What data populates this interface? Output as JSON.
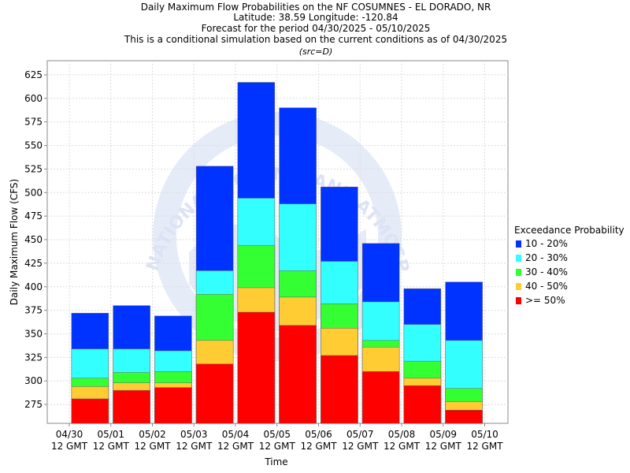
{
  "titles": {
    "line1": "Daily Maximum Flow Probabilities on the NF COSUMNES - EL DORADO, NR",
    "line2": "Latitude: 38.59 Longitude: -120.84",
    "line3": "Forecast for the period 04/30/2025 - 05/10/2025",
    "line4": "This is a conditional simulation based on the current conditions as of 04/30/2025",
    "src": "(src=D)"
  },
  "watermark": {
    "text": "NATIONAL OCEANIC AND ATMOSPHERIC ADMINISTRATION",
    "color": "#dde3f5",
    "icon": "noaa-logo-icon"
  },
  "chart_data": {
    "type": "bar",
    "stacked": true,
    "title": "Daily Maximum Flow Probabilities on the NF COSUMNES - EL DORADO, NR",
    "xlabel": "Time",
    "ylabel": "Daily Maximum Flow (CFS)",
    "ylim": [
      255,
      640
    ],
    "yticks": [
      275,
      300,
      325,
      350,
      375,
      400,
      425,
      450,
      475,
      500,
      525,
      550,
      575,
      600,
      625
    ],
    "xticks": [
      {
        "date": "05/01",
        "time": "12 GMT"
      },
      {
        "date": "05/02",
        "time": "12 GMT"
      },
      {
        "date": "05/03",
        "time": "12 GMT"
      },
      {
        "date": "05/04",
        "time": "12 GMT"
      },
      {
        "date": "05/05",
        "time": "12 GMT"
      },
      {
        "date": "05/06",
        "time": "12 GMT"
      },
      {
        "date": "05/07",
        "time": "12 GMT"
      },
      {
        "date": "05/08",
        "time": "12 GMT"
      },
      {
        "date": "05/09",
        "time": "12 GMT"
      },
      {
        "date": "05/10",
        "time": "12 GMT"
      }
    ],
    "first_tick": {
      "date": "04/30",
      "time": "12 GMT"
    },
    "grid": true,
    "legend_position": "right",
    "legend_title": "Exceedance Probability",
    "series": [
      {
        "name": "10 - 20%",
        "color": "#0033ff"
      },
      {
        "name": "20 - 30%",
        "color": "#33ffff"
      },
      {
        "name": "30 - 40%",
        "color": "#33ff33"
      },
      {
        "name": "40 - 50%",
        "color": "#ffcc33"
      },
      {
        "name": ">= 50%",
        "color": "#ff0000"
      }
    ],
    "bars": [
      {
        "day": "05/01",
        "ge50": 281,
        "p40_50": 294,
        "p30_40": 303,
        "p20_30": 334,
        "p10_20": 372
      },
      {
        "day": "05/02",
        "ge50": 290,
        "p40_50": 298,
        "p30_40": 309,
        "p20_30": 334,
        "p10_20": 380
      },
      {
        "day": "05/03",
        "ge50": 293,
        "p40_50": 298,
        "p30_40": 310,
        "p20_30": 332,
        "p10_20": 369
      },
      {
        "day": "05/04",
        "ge50": 318,
        "p40_50": 343,
        "p30_40": 392,
        "p20_30": 417,
        "p10_20": 528
      },
      {
        "day": "05/05",
        "ge50": 373,
        "p40_50": 399,
        "p30_40": 444,
        "p20_30": 494,
        "p10_20": 617
      },
      {
        "day": "05/06",
        "ge50": 359,
        "p40_50": 389,
        "p30_40": 417,
        "p20_30": 488,
        "p10_20": 590
      },
      {
        "day": "05/07",
        "ge50": 327,
        "p40_50": 356,
        "p30_40": 382,
        "p20_30": 427,
        "p10_20": 506
      },
      {
        "day": "05/08",
        "ge50": 310,
        "p40_50": 336,
        "p30_40": 343,
        "p20_30": 384,
        "p10_20": 446
      },
      {
        "day": "05/09",
        "ge50": 295,
        "p40_50": 303,
        "p30_40": 321,
        "p20_30": 360,
        "p10_20": 398
      },
      {
        "day": "05/10",
        "ge50": 269,
        "p40_50": 278,
        "p30_40": 292,
        "p20_30": 343,
        "p10_20": 405
      }
    ]
  }
}
